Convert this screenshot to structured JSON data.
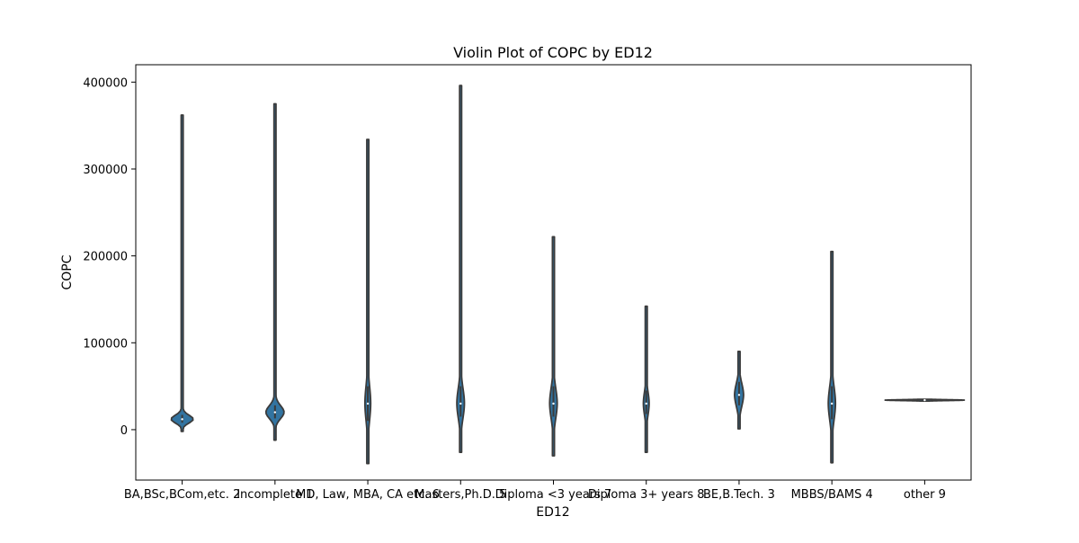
{
  "chart_data": {
    "type": "violin",
    "title": "Violin Plot of COPC by ED12",
    "xlabel": "ED12",
    "ylabel": "COPC",
    "ylim": [
      -58000,
      420000
    ],
    "yticks": [
      0,
      100000,
      200000,
      300000,
      400000
    ],
    "grid": false,
    "legend": "none",
    "categories": [
      "BA,BSc,BCom,etc. 2",
      "Incomplete 1",
      "MD, Law, MBA, CA etc. 6",
      "Masters,Ph.D. 5",
      "Diploma <3 years 7",
      "Diploma 3+ years 8",
      "BE,B.Tech. 3",
      "MBBS/BAMS 4",
      "other 9"
    ],
    "violins": [
      {
        "min": -2000,
        "max": 362000,
        "median": 12000,
        "q1": 8000,
        "q3": 17000
      },
      {
        "min": -12000,
        "max": 375000,
        "median": 20000,
        "q1": 13000,
        "q3": 28000
      },
      {
        "min": -39000,
        "max": 334000,
        "median": 30000,
        "q1": 10000,
        "q3": 50000
      },
      {
        "min": -26000,
        "max": 396000,
        "median": 30000,
        "q1": 15000,
        "q3": 50000
      },
      {
        "min": -30000,
        "max": 222000,
        "median": 30000,
        "q1": 15000,
        "q3": 50000
      },
      {
        "min": -26000,
        "max": 142000,
        "median": 30000,
        "q1": 18000,
        "q3": 45000
      },
      {
        "min": 1000,
        "max": 90000,
        "median": 40000,
        "q1": 28000,
        "q3": 55000
      },
      {
        "min": -38000,
        "max": 205000,
        "median": 30000,
        "q1": 12000,
        "q3": 50000
      },
      {
        "min": 33000,
        "max": 35000,
        "median": 34000,
        "q1": 33500,
        "q3": 34500
      }
    ],
    "colors": {
      "fill": "#3274a1",
      "edge": "#3b3b3b",
      "axes": "#000000"
    }
  }
}
